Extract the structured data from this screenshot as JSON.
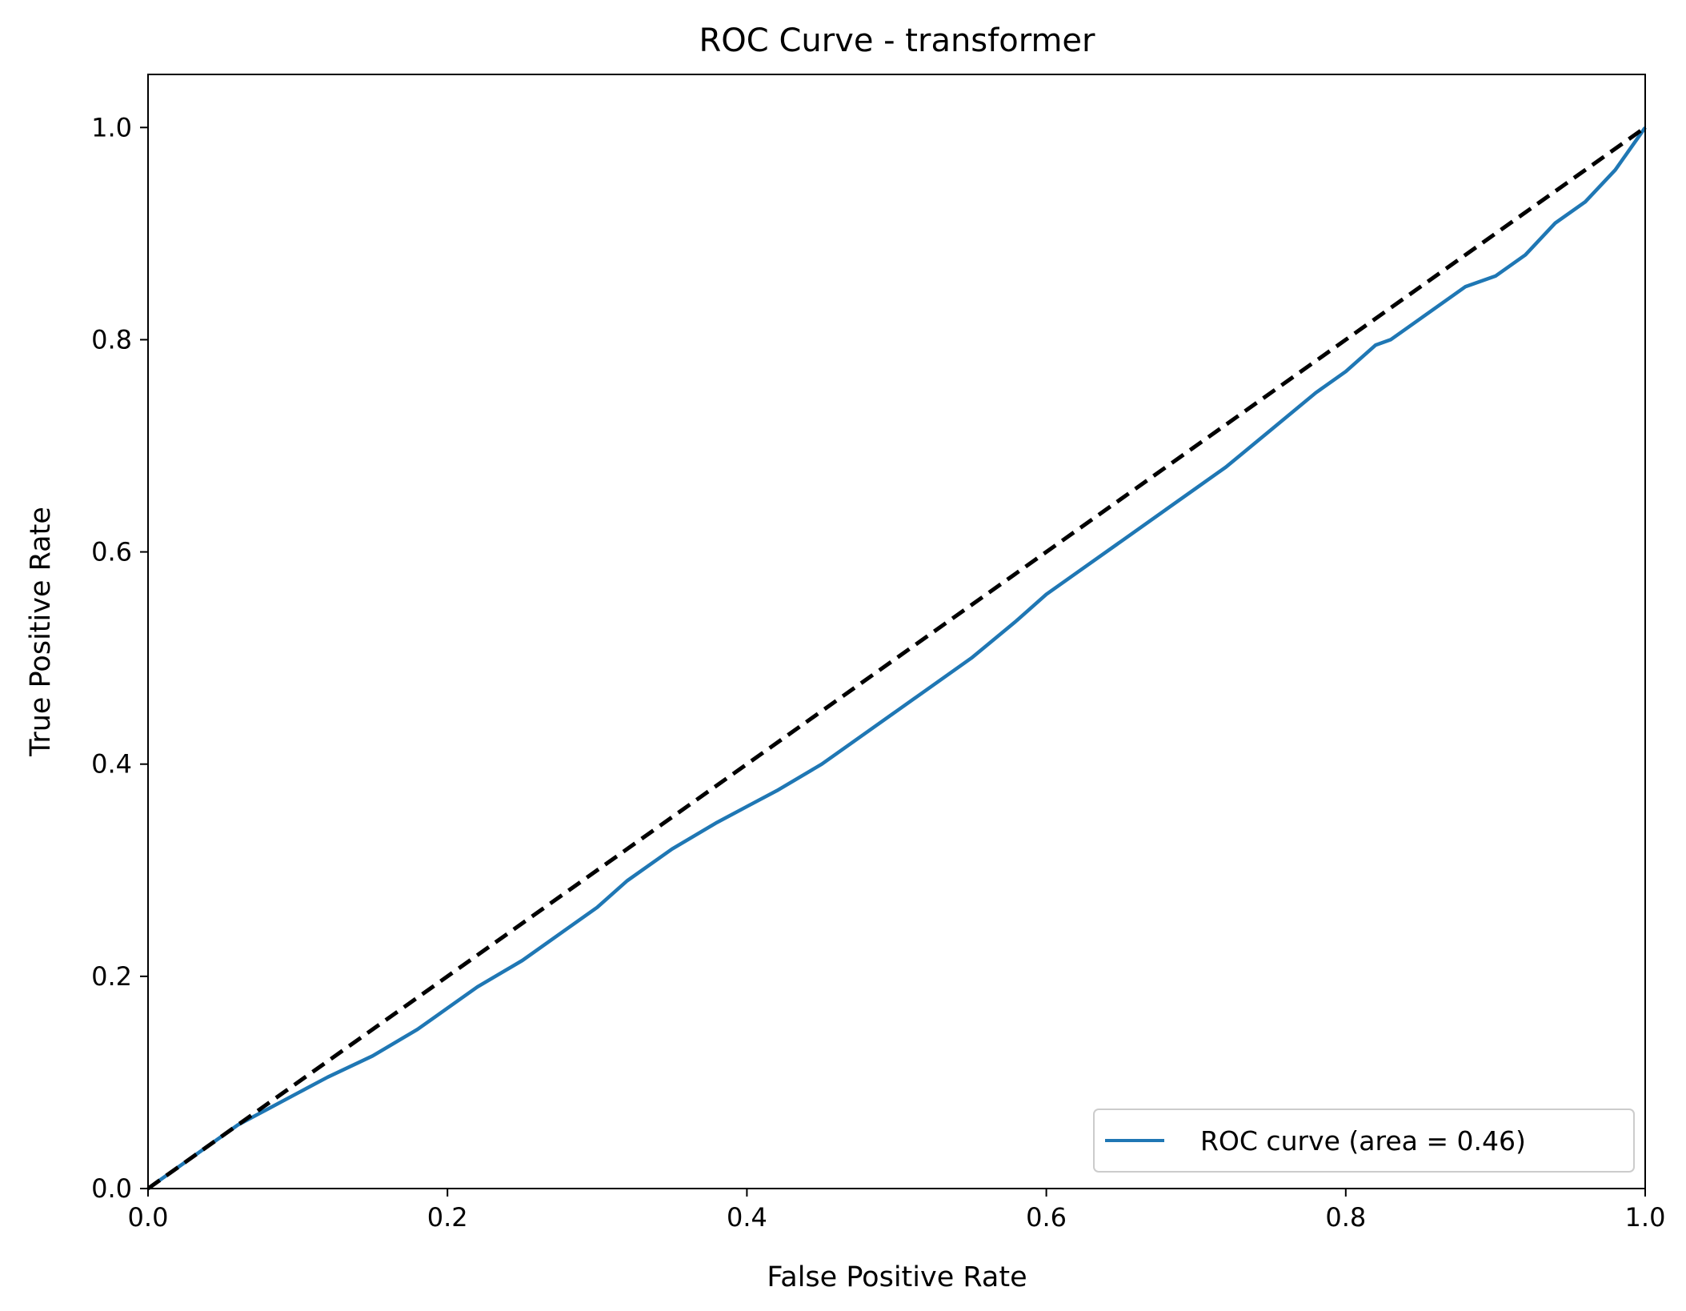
{
  "chart_data": {
    "type": "line",
    "title": "ROC Curve - transformer",
    "xlabel": "False Positive Rate",
    "ylabel": "True Positive Rate",
    "xlim": [
      0.0,
      1.0
    ],
    "ylim": [
      0.0,
      1.05
    ],
    "xticks": [
      "0.0",
      "0.2",
      "0.4",
      "0.6",
      "0.8",
      "1.0"
    ],
    "yticks": [
      "0.0",
      "0.2",
      "0.4",
      "0.6",
      "0.8",
      "1.0"
    ],
    "grid": false,
    "legend_position": "lower-right",
    "series": [
      {
        "name": "ROC curve (area = 0.46)",
        "color": "#1f77b4",
        "style": "solid",
        "x": [
          0.0,
          0.01,
          0.02,
          0.04,
          0.06,
          0.08,
          0.1,
          0.12,
          0.15,
          0.18,
          0.2,
          0.22,
          0.25,
          0.28,
          0.3,
          0.32,
          0.35,
          0.38,
          0.4,
          0.42,
          0.45,
          0.48,
          0.5,
          0.52,
          0.55,
          0.58,
          0.6,
          0.62,
          0.65,
          0.68,
          0.7,
          0.72,
          0.75,
          0.78,
          0.8,
          0.82,
          0.83,
          0.85,
          0.88,
          0.9,
          0.92,
          0.94,
          0.96,
          0.98,
          1.0
        ],
        "y": [
          0.0,
          0.01,
          0.02,
          0.04,
          0.06,
          0.075,
          0.09,
          0.105,
          0.125,
          0.15,
          0.17,
          0.19,
          0.215,
          0.245,
          0.265,
          0.29,
          0.32,
          0.345,
          0.36,
          0.375,
          0.4,
          0.43,
          0.45,
          0.47,
          0.5,
          0.535,
          0.56,
          0.58,
          0.61,
          0.64,
          0.66,
          0.68,
          0.715,
          0.75,
          0.77,
          0.795,
          0.8,
          0.82,
          0.85,
          0.86,
          0.88,
          0.91,
          0.93,
          0.96,
          1.0
        ]
      },
      {
        "name": "",
        "color": "#000000",
        "style": "dashed",
        "x": [
          0.0,
          1.0
        ],
        "y": [
          0.0,
          1.0
        ]
      }
    ],
    "legend": [
      {
        "label": "ROC curve (area = 0.46)",
        "color": "#1f77b4"
      }
    ]
  }
}
